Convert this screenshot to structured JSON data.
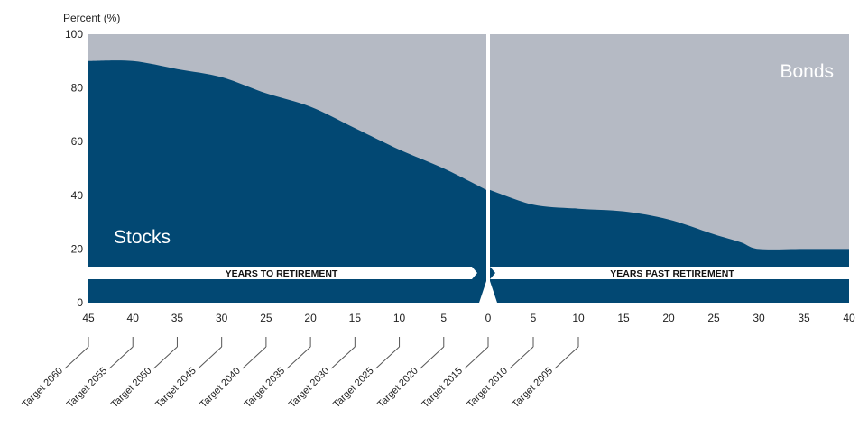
{
  "chart_data": {
    "type": "area",
    "ylabel": "Percent (%)",
    "ylim": [
      0,
      100
    ],
    "yticks": [
      "0",
      "20",
      "40",
      "60",
      "80",
      "100"
    ],
    "x_left_label": "YEARS TO RETIREMENT",
    "x_right_label": "YEARS PAST RETIREMENT",
    "xticks_left": [
      "45",
      "40",
      "35",
      "30",
      "25",
      "20",
      "15",
      "10",
      "5",
      "0"
    ],
    "xticks_right": [
      "5",
      "10",
      "15",
      "20",
      "25",
      "30",
      "35",
      "40"
    ],
    "series": [
      {
        "name": "Stocks",
        "color": "#024873",
        "before_retirement": {
          "years_to_retirement": [
            45,
            40,
            35,
            30,
            25,
            20,
            15,
            10,
            5,
            0
          ],
          "values": [
            90,
            90,
            87,
            84,
            78,
            73,
            65,
            57,
            50,
            42
          ]
        },
        "after_retirement": {
          "years_past_retirement": [
            0,
            5,
            10,
            15,
            20,
            25,
            28,
            30,
            35,
            40
          ],
          "values": [
            42,
            36.5,
            35,
            34,
            31,
            25.5,
            22.5,
            20,
            20,
            20
          ]
        }
      },
      {
        "name": "Bonds",
        "color": "#b5bac4"
      }
    ],
    "targets": [
      {
        "label": "Target 2060",
        "years_to_retirement": 45
      },
      {
        "label": "Target 2055",
        "years_to_retirement": 40
      },
      {
        "label": "Target 2050",
        "years_to_retirement": 35
      },
      {
        "label": "Target 2045",
        "years_to_retirement": 30
      },
      {
        "label": "Target 2040",
        "years_to_retirement": 25
      },
      {
        "label": "Target 2035",
        "years_to_retirement": 20
      },
      {
        "label": "Target 2030",
        "years_to_retirement": 15
      },
      {
        "label": "Target 2025",
        "years_to_retirement": 10
      },
      {
        "label": "Target 2020",
        "years_to_retirement": 5
      },
      {
        "label": "Target 2015",
        "years_to_retirement": 0
      },
      {
        "label": "Target 2010",
        "years_past_retirement": 5
      },
      {
        "label": "Target 2005",
        "years_past_retirement": 10
      }
    ]
  }
}
